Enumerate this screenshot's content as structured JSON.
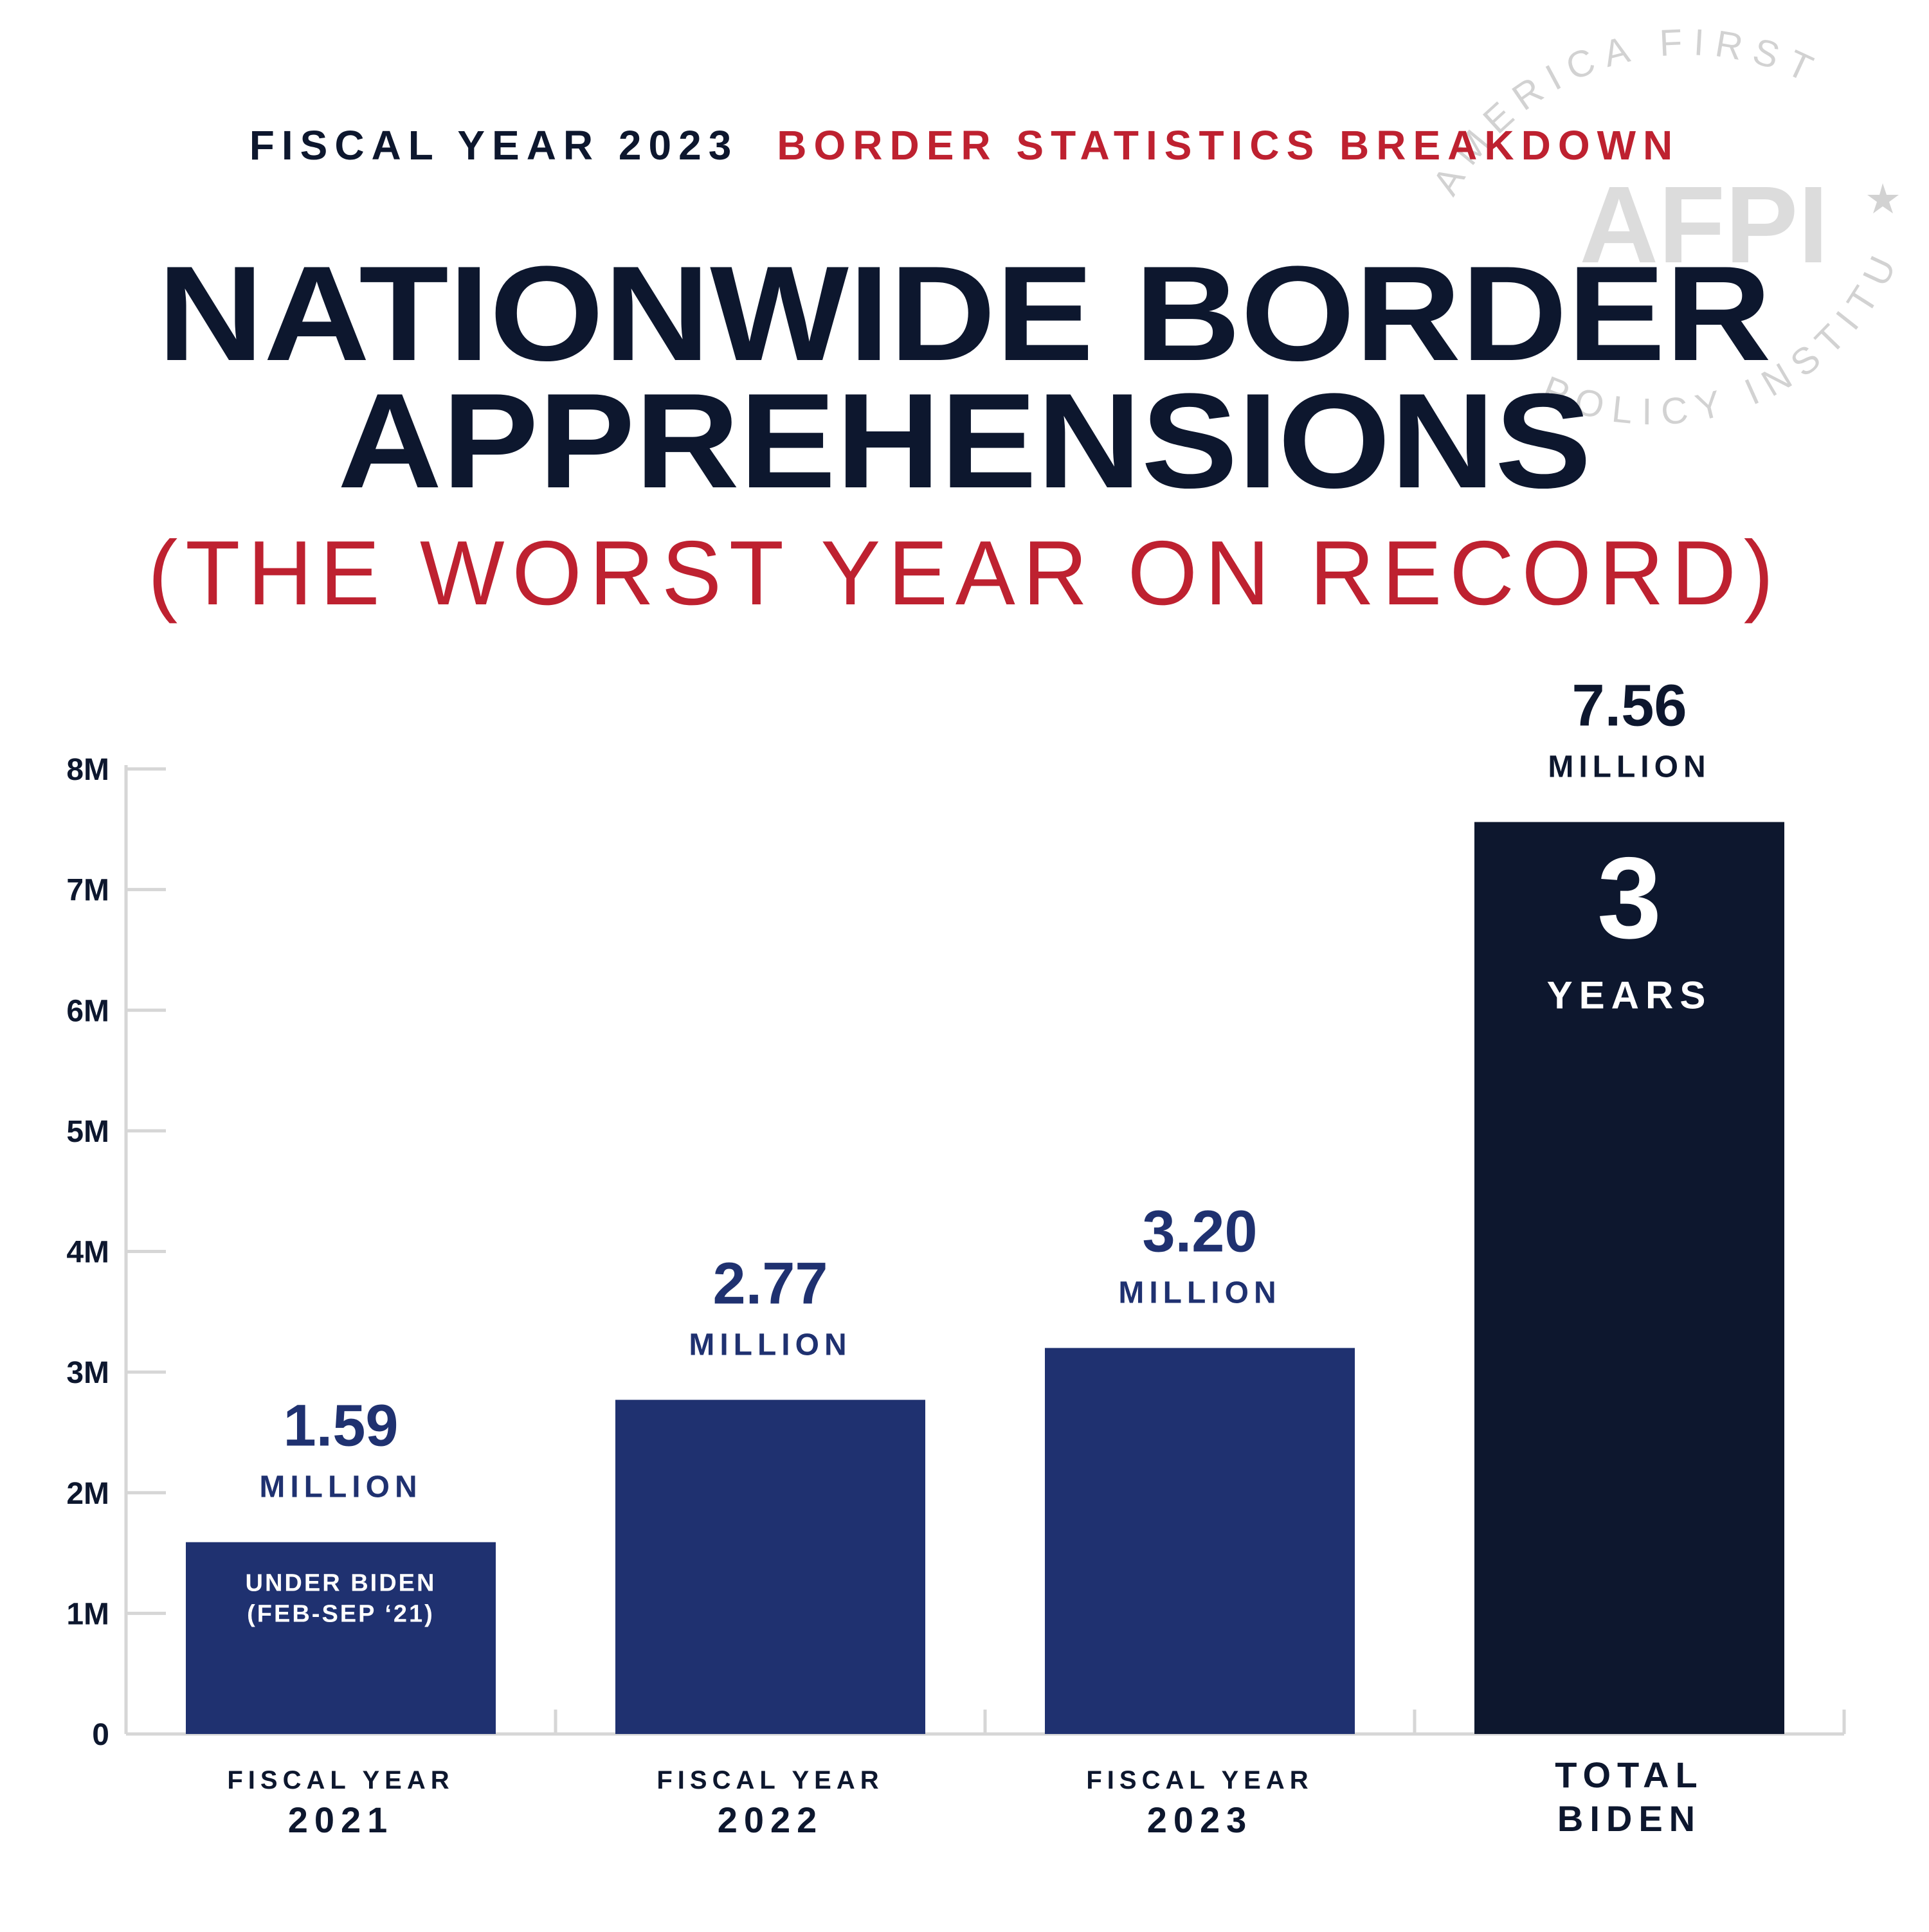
{
  "header": {
    "kicker_left": "FISCAL YEAR 2023",
    "kicker_right": "BORDER STATISTICS BREAKDOWN",
    "title_line1": "NATIONWIDE BORDER",
    "title_line2": "APPREHENSIONS",
    "subtitle": "(THE WORST YEAR ON RECORD)"
  },
  "seal": {
    "ring_top": "AMERICA FIRST",
    "ring_bottom": "POLICY INSTITUTE",
    "monogram": "AFPI"
  },
  "colors": {
    "navy": "#1f3170",
    "dark_navy": "#0d172e",
    "red": "#be2130",
    "axis": "#d6d6d6",
    "seal": "#d2d2d2"
  },
  "chart_data": {
    "type": "bar",
    "ylim": [
      0,
      8
    ],
    "ytick_labels": [
      "0",
      "1M",
      "2M",
      "3M",
      "4M",
      "5M",
      "6M",
      "7M",
      "8M"
    ],
    "y_unit": "million",
    "bars": [
      {
        "category_top": "FISCAL YEAR",
        "category_bottom": "2021",
        "value": 1.59,
        "value_label": "1.59",
        "unit_label": "MILLION",
        "note_line1": "UNDER BIDEN",
        "note_line2": "(FEB-SEP ‘21)",
        "color": "#1f3170"
      },
      {
        "category_top": "FISCAL YEAR",
        "category_bottom": "2022",
        "value": 2.77,
        "value_label": "2.77",
        "unit_label": "MILLION",
        "color": "#1f3170"
      },
      {
        "category_top": "FISCAL YEAR",
        "category_bottom": "2023",
        "value": 3.2,
        "value_label": "3.20",
        "unit_label": "MILLION",
        "color": "#1f3170"
      },
      {
        "category_top": "TOTAL",
        "category_bottom": "BIDEN",
        "value": 7.56,
        "value_label": "7.56",
        "unit_label": "MILLION",
        "inner_big": "3",
        "inner_small": "YEARS",
        "color": "#0d172e"
      }
    ]
  }
}
